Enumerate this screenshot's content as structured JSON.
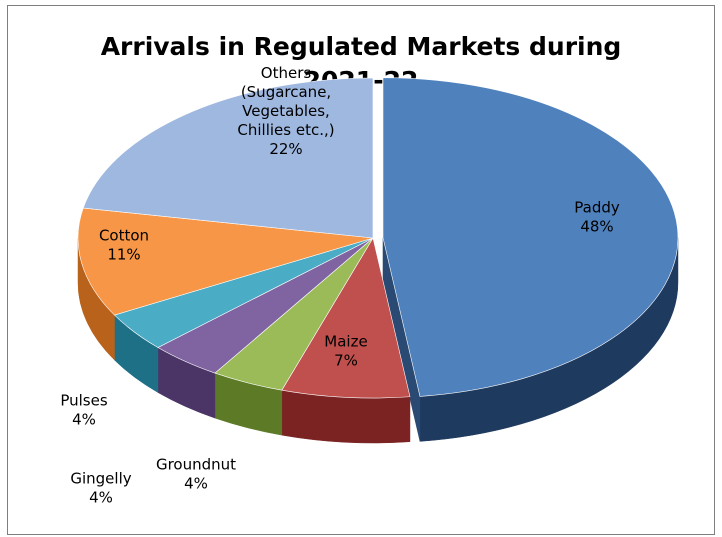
{
  "chart_data": {
    "type": "pie",
    "title": "Arrivals in Regulated Markets during 2021-22",
    "title_lines": [
      "Arrivals in Regulated Markets during",
      "2021-22"
    ],
    "style": "3d-exploded",
    "slices": [
      {
        "name": "Paddy",
        "value": 48,
        "label_lines": [
          "Paddy",
          "48%"
        ],
        "color": "#4f81bd",
        "side_color": "#1f3a5f"
      },
      {
        "name": "Maize",
        "value": 7,
        "label_lines": [
          "Maize",
          "7%"
        ],
        "color": "#c0504d",
        "side_color": "#7a2322"
      },
      {
        "name": "Groundnut",
        "value": 4,
        "label_lines": [
          "Groundnut",
          "4%"
        ],
        "color": "#9bbb59",
        "side_color": "#5d7a27"
      },
      {
        "name": "Gingelly",
        "value": 4,
        "label_lines": [
          "Gingelly",
          "4%"
        ],
        "color": "#8064a2",
        "side_color": "#4b3466"
      },
      {
        "name": "Pulses",
        "value": 4,
        "label_lines": [
          "Pulses",
          "4%"
        ],
        "color": "#4bacc6",
        "side_color": "#1e7087"
      },
      {
        "name": "Cotton",
        "value": 11,
        "label_lines": [
          "Cotton",
          "11%"
        ],
        "color": "#f79646",
        "side_color": "#b8621b"
      },
      {
        "name": "Others (Sugarcane, Vegetables, Chillies etc.,)",
        "value": 22,
        "label_lines": [
          "Others",
          "(Sugarcane,",
          "Vegetables,",
          "Chillies etc.,)",
          "22%"
        ],
        "color": "#9fb8e0",
        "side_color": "#5f7fb0"
      }
    ]
  }
}
